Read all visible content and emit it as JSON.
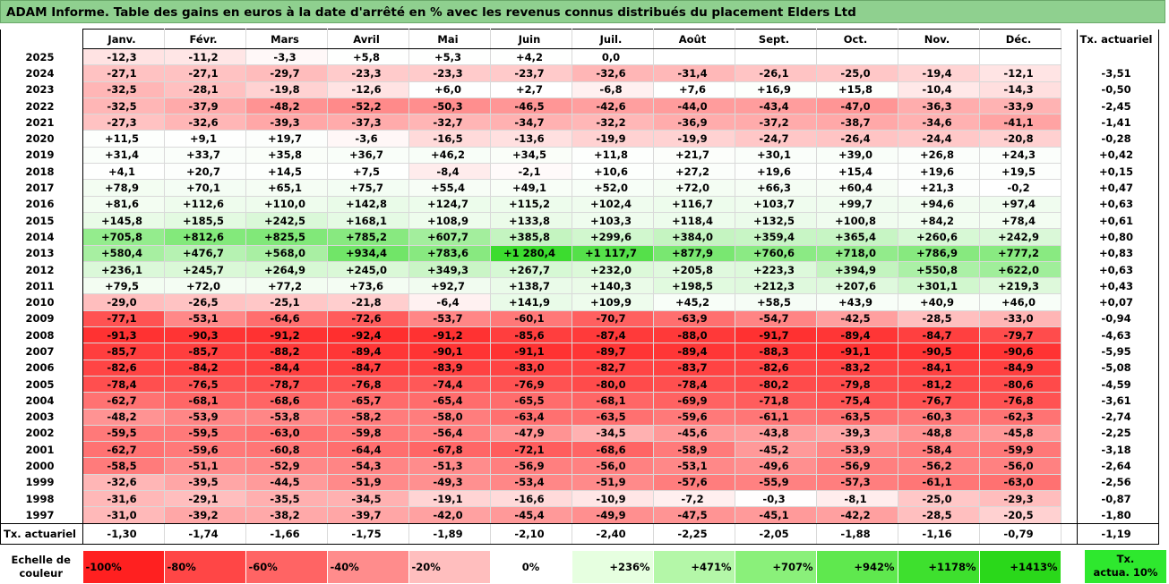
{
  "title": "ADAM Informe. Table des gains en euros à la date d'arrêté en % avec les revenus connus distribués du placement Elders Ltd",
  "months": [
    "Janv.",
    "Févr.",
    "Mars",
    "Avril",
    "Mai",
    "Juin",
    "Juil.",
    "Août",
    "Sept.",
    "Oct.",
    "Nov.",
    "Déc."
  ],
  "tx_header": "Tx. actuariel",
  "rows": [
    {
      "year": "2025",
      "v": [
        "-12,3",
        "-11,2",
        "-3,3",
        "+5,8",
        "+5,3",
        "+4,2",
        "0,0",
        "",
        "",
        "",
        "",
        ""
      ],
      "tx": ""
    },
    {
      "year": "2024",
      "v": [
        "-27,1",
        "-27,1",
        "-29,7",
        "-23,3",
        "-23,3",
        "-23,7",
        "-32,6",
        "-31,4",
        "-26,1",
        "-25,0",
        "-19,4",
        "-12,1"
      ],
      "tx": "-3,51"
    },
    {
      "year": "2023",
      "v": [
        "-32,5",
        "-28,1",
        "-19,8",
        "-12,6",
        "+6,0",
        "+2,7",
        "-6,8",
        "+7,6",
        "+16,9",
        "+15,8",
        "-10,4",
        "-14,3"
      ],
      "tx": "-0,50"
    },
    {
      "year": "2022",
      "v": [
        "-32,5",
        "-37,9",
        "-48,2",
        "-52,2",
        "-50,3",
        "-46,5",
        "-42,6",
        "-44,0",
        "-43,4",
        "-47,0",
        "-36,3",
        "-33,9"
      ],
      "tx": "-2,45"
    },
    {
      "year": "2021",
      "v": [
        "-27,3",
        "-32,6",
        "-39,3",
        "-37,3",
        "-32,7",
        "-34,7",
        "-32,2",
        "-36,9",
        "-37,2",
        "-38,7",
        "-34,6",
        "-41,1"
      ],
      "tx": "-1,41"
    },
    {
      "year": "2020",
      "v": [
        "+11,5",
        "+9,1",
        "+19,7",
        "-3,6",
        "-16,5",
        "-13,6",
        "-19,9",
        "-19,9",
        "-24,7",
        "-26,4",
        "-24,4",
        "-20,8"
      ],
      "tx": "-0,28"
    },
    {
      "year": "2019",
      "v": [
        "+31,4",
        "+33,7",
        "+35,8",
        "+36,7",
        "+46,2",
        "+34,5",
        "+11,8",
        "+21,7",
        "+30,1",
        "+39,0",
        "+26,8",
        "+24,3"
      ],
      "tx": "+0,42"
    },
    {
      "year": "2018",
      "v": [
        "+4,1",
        "+20,7",
        "+14,5",
        "+7,5",
        "-8,4",
        "-2,1",
        "+10,6",
        "+27,2",
        "+19,6",
        "+15,4",
        "+19,6",
        "+19,5"
      ],
      "tx": "+0,15"
    },
    {
      "year": "2017",
      "v": [
        "+78,9",
        "+70,1",
        "+65,1",
        "+75,7",
        "+55,4",
        "+49,1",
        "+52,0",
        "+72,0",
        "+66,3",
        "+60,4",
        "+21,3",
        "-0,2"
      ],
      "tx": "+0,47"
    },
    {
      "year": "2016",
      "v": [
        "+81,6",
        "+112,6",
        "+110,0",
        "+142,8",
        "+124,7",
        "+115,2",
        "+102,4",
        "+116,7",
        "+103,7",
        "+99,7",
        "+94,6",
        "+97,4"
      ],
      "tx": "+0,63"
    },
    {
      "year": "2015",
      "v": [
        "+145,8",
        "+185,5",
        "+242,5",
        "+168,1",
        "+108,9",
        "+133,8",
        "+103,3",
        "+118,4",
        "+132,5",
        "+100,8",
        "+84,2",
        "+78,4"
      ],
      "tx": "+0,61"
    },
    {
      "year": "2014",
      "v": [
        "+705,8",
        "+812,6",
        "+825,5",
        "+785,2",
        "+607,7",
        "+385,8",
        "+299,6",
        "+384,0",
        "+359,4",
        "+365,4",
        "+260,6",
        "+242,9"
      ],
      "tx": "+0,80"
    },
    {
      "year": "2013",
      "v": [
        "+580,4",
        "+476,7",
        "+568,0",
        "+934,4",
        "+783,6",
        "+1 280,4",
        "+1 117,7",
        "+877,9",
        "+760,6",
        "+718,0",
        "+786,9",
        "+777,2"
      ],
      "tx": "+0,83"
    },
    {
      "year": "2012",
      "v": [
        "+236,1",
        "+245,7",
        "+264,9",
        "+245,0",
        "+349,3",
        "+267,7",
        "+232,0",
        "+205,8",
        "+223,3",
        "+394,9",
        "+550,8",
        "+622,0"
      ],
      "tx": "+0,63"
    },
    {
      "year": "2011",
      "v": [
        "+79,5",
        "+72,0",
        "+77,2",
        "+73,6",
        "+92,7",
        "+138,7",
        "+140,3",
        "+198,5",
        "+212,3",
        "+207,6",
        "+301,1",
        "+219,3"
      ],
      "tx": "+0,43"
    },
    {
      "year": "2010",
      "v": [
        "-29,0",
        "-26,5",
        "-25,1",
        "-21,8",
        "-6,4",
        "+141,9",
        "+109,9",
        "+45,2",
        "+58,5",
        "+43,9",
        "+40,9",
        "+46,0"
      ],
      "tx": "+0,07"
    },
    {
      "year": "2009",
      "v": [
        "-77,1",
        "-53,1",
        "-64,6",
        "-72,6",
        "-53,7",
        "-60,1",
        "-70,7",
        "-63,9",
        "-54,7",
        "-42,5",
        "-28,5",
        "-33,0"
      ],
      "tx": "-0,94"
    },
    {
      "year": "2008",
      "v": [
        "-91,3",
        "-90,3",
        "-91,2",
        "-92,4",
        "-91,2",
        "-85,6",
        "-87,4",
        "-88,0",
        "-91,7",
        "-89,4",
        "-84,7",
        "-79,7"
      ],
      "tx": "-4,63"
    },
    {
      "year": "2007",
      "v": [
        "-85,7",
        "-85,7",
        "-88,2",
        "-89,4",
        "-90,1",
        "-91,1",
        "-89,7",
        "-89,4",
        "-88,3",
        "-91,1",
        "-90,5",
        "-90,6"
      ],
      "tx": "-5,95"
    },
    {
      "year": "2006",
      "v": [
        "-82,6",
        "-84,2",
        "-84,4",
        "-84,7",
        "-83,9",
        "-83,0",
        "-82,7",
        "-83,7",
        "-82,6",
        "-83,2",
        "-84,1",
        "-84,9"
      ],
      "tx": "-5,08"
    },
    {
      "year": "2005",
      "v": [
        "-78,4",
        "-76,5",
        "-78,7",
        "-76,8",
        "-74,4",
        "-76,9",
        "-80,0",
        "-78,4",
        "-80,2",
        "-79,8",
        "-81,2",
        "-80,6"
      ],
      "tx": "-4,59"
    },
    {
      "year": "2004",
      "v": [
        "-62,7",
        "-68,1",
        "-68,6",
        "-65,7",
        "-65,4",
        "-65,5",
        "-68,1",
        "-69,9",
        "-71,8",
        "-75,4",
        "-76,7",
        "-76,8"
      ],
      "tx": "-3,61"
    },
    {
      "year": "2003",
      "v": [
        "-48,2",
        "-53,9",
        "-53,8",
        "-58,2",
        "-58,0",
        "-63,4",
        "-63,5",
        "-59,6",
        "-61,1",
        "-63,5",
        "-60,3",
        "-62,3"
      ],
      "tx": "-2,74"
    },
    {
      "year": "2002",
      "v": [
        "-59,5",
        "-59,5",
        "-63,0",
        "-59,8",
        "-56,4",
        "-47,9",
        "-34,5",
        "-45,6",
        "-43,8",
        "-39,3",
        "-48,8",
        "-45,8"
      ],
      "tx": "-2,25"
    },
    {
      "year": "2001",
      "v": [
        "-62,7",
        "-59,6",
        "-60,8",
        "-64,4",
        "-67,8",
        "-72,1",
        "-68,6",
        "-58,9",
        "-45,2",
        "-53,9",
        "-58,4",
        "-59,9"
      ],
      "tx": "-3,18"
    },
    {
      "year": "2000",
      "v": [
        "-58,5",
        "-51,1",
        "-52,9",
        "-54,3",
        "-51,3",
        "-56,9",
        "-56,0",
        "-53,1",
        "-49,6",
        "-56,9",
        "-56,2",
        "-56,0"
      ],
      "tx": "-2,64"
    },
    {
      "year": "1999",
      "v": [
        "-32,6",
        "-39,5",
        "-44,5",
        "-51,9",
        "-49,3",
        "-53,4",
        "-51,9",
        "-57,6",
        "-55,9",
        "-57,3",
        "-61,1",
        "-63,0"
      ],
      "tx": "-2,56"
    },
    {
      "year": "1998",
      "v": [
        "-31,6",
        "-29,1",
        "-35,5",
        "-34,5",
        "-19,1",
        "-16,6",
        "-10,9",
        "-7,2",
        "-0,3",
        "-8,1",
        "-25,0",
        "-29,3"
      ],
      "tx": "-0,87"
    },
    {
      "year": "1997",
      "v": [
        "-31,0",
        "-39,2",
        "-38,2",
        "-39,7",
        "-42,0",
        "-45,4",
        "-49,9",
        "-47,5",
        "-45,1",
        "-42,2",
        "-28,5",
        "-20,5"
      ],
      "tx": "-1,80"
    }
  ],
  "footer": {
    "label": "Tx. actuariel",
    "v": [
      "-1,30",
      "-1,74",
      "-1,66",
      "-1,75",
      "-1,89",
      "-2,10",
      "-2,40",
      "-2,25",
      "-2,05",
      "-1,88",
      "-1,16",
      "-0,79"
    ],
    "tx": "-1,19"
  },
  "scale": {
    "label_line1": "Echelle de",
    "label_line2": "couleur",
    "items": [
      {
        "t": "-100%",
        "c": "#ff2020"
      },
      {
        "t": "-80%",
        "c": "#ff4646"
      },
      {
        "t": "-60%",
        "c": "#ff6464"
      },
      {
        "t": "-40%",
        "c": "#ff8c8c"
      },
      {
        "t": "-20%",
        "c": "#ffbebe"
      },
      {
        "t": "0%",
        "c": "#ffffff"
      },
      {
        "t": "+236%",
        "c": "#e6ffe0"
      },
      {
        "t": "+471%",
        "c": "#b4f7a8"
      },
      {
        "t": "+707%",
        "c": "#8af07a"
      },
      {
        "t": "+942%",
        "c": "#5fe84e"
      },
      {
        "t": "+1178%",
        "c": "#3ee02e"
      },
      {
        "t": "+1413%",
        "c": "#2ad81a"
      }
    ],
    "tx_line1": "Tx.",
    "tx_line2": "actua. 10%"
  }
}
